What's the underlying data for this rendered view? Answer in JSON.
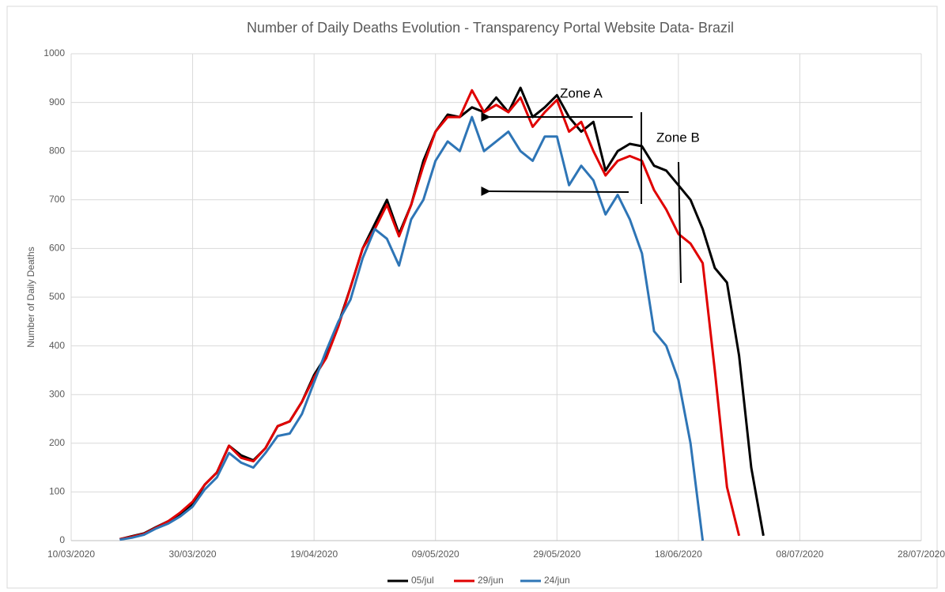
{
  "chart_data": {
    "type": "line",
    "title": "Number of Daily Deaths Evolution - Transparency Portal Website Data- Brazil",
    "y_label": "Number of Daily Deaths",
    "annotations": [
      "Zone A",
      "Zone B"
    ],
    "x": [
      "2020-03-18",
      "2020-03-20",
      "2020-03-22",
      "2020-03-24",
      "2020-03-26",
      "2020-03-28",
      "2020-03-30",
      "2020-04-01",
      "2020-04-03",
      "2020-04-05",
      "2020-04-07",
      "2020-04-09",
      "2020-04-11",
      "2020-04-13",
      "2020-04-15",
      "2020-04-17",
      "2020-04-19",
      "2020-04-21",
      "2020-04-23",
      "2020-04-25",
      "2020-04-27",
      "2020-04-29",
      "2020-05-01",
      "2020-05-03",
      "2020-05-05",
      "2020-05-07",
      "2020-05-09",
      "2020-05-11",
      "2020-05-13",
      "2020-05-15",
      "2020-05-17",
      "2020-05-19",
      "2020-05-21",
      "2020-05-23",
      "2020-05-25",
      "2020-05-27",
      "2020-05-29",
      "2020-05-31",
      "2020-06-02",
      "2020-06-04",
      "2020-06-06",
      "2020-06-08",
      "2020-06-10",
      "2020-06-12",
      "2020-06-14",
      "2020-06-16",
      "2020-06-18",
      "2020-06-20",
      "2020-06-22",
      "2020-06-24",
      "2020-06-26",
      "2020-06-28",
      "2020-06-30",
      "2020-07-02"
    ],
    "series": [
      {
        "name": "05/jul",
        "color": "#000000",
        "values": [
          3,
          9,
          15,
          28,
          40,
          55,
          75,
          115,
          140,
          195,
          175,
          165,
          190,
          235,
          245,
          285,
          340,
          380,
          445,
          520,
          600,
          650,
          700,
          630,
          690,
          780,
          840,
          875,
          870,
          890,
          880,
          910,
          880,
          930,
          870,
          890,
          915,
          870,
          840,
          860,
          760,
          800,
          815,
          810,
          770,
          760,
          730,
          700,
          640,
          560,
          530,
          380,
          150,
          10
        ]
      },
      {
        "name": "29/jun",
        "color": "#e00000",
        "values": [
          3,
          8,
          14,
          27,
          40,
          58,
          80,
          115,
          140,
          195,
          170,
          163,
          190,
          235,
          245,
          285,
          335,
          375,
          440,
          520,
          600,
          640,
          690,
          625,
          690,
          770,
          840,
          870,
          870,
          925,
          880,
          895,
          880,
          910,
          850,
          880,
          905,
          840,
          860,
          800,
          750,
          780,
          790,
          780,
          720,
          680,
          630,
          610,
          570,
          350,
          110,
          10,
          null,
          null
        ]
      },
      {
        "name": "24/jun",
        "color": "#2e75b6",
        "values": [
          2,
          6,
          12,
          25,
          35,
          50,
          70,
          105,
          130,
          180,
          160,
          150,
          180,
          215,
          220,
          260,
          325,
          390,
          450,
          495,
          580,
          640,
          620,
          565,
          660,
          700,
          780,
          820,
          800,
          870,
          800,
          820,
          840,
          800,
          780,
          830,
          830,
          730,
          770,
          740,
          670,
          710,
          660,
          590,
          430,
          400,
          330,
          200,
          0,
          null,
          null,
          null,
          null,
          null
        ]
      }
    ],
    "xlim": [
      "2020-03-10",
      "2020-07-28"
    ],
    "xticks": [
      {
        "value": "2020-03-10",
        "label": "10/03/2020"
      },
      {
        "value": "2020-03-30",
        "label": "30/03/2020"
      },
      {
        "value": "2020-04-19",
        "label": "19/04/2020"
      },
      {
        "value": "2020-05-09",
        "label": "09/05/2020"
      },
      {
        "value": "2020-05-29",
        "label": "29/05/2020"
      },
      {
        "value": "2020-06-18",
        "label": "18/06/2020"
      },
      {
        "value": "2020-07-08",
        "label": "08/07/2020"
      },
      {
        "value": "2020-07-28",
        "label": "28/07/2020"
      }
    ],
    "ylim": [
      0,
      1000
    ],
    "yticks": [
      0,
      100,
      200,
      300,
      400,
      500,
      600,
      700,
      800,
      900,
      1000
    ],
    "grid": true,
    "legend": "bottom"
  }
}
